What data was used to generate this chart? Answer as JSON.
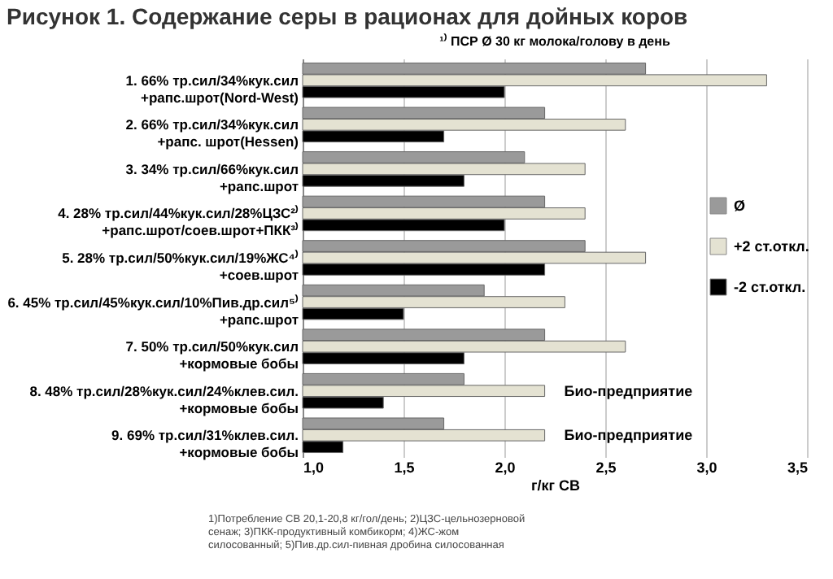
{
  "chart_data": {
    "type": "bar",
    "orientation": "horizontal",
    "title": "Рисунок 1. Содержание серы в рационах для дойных коров",
    "subtitle": "¹⁾ ПСР Ø 30 кг молока/голову в день",
    "xlabel": "г/кг СВ",
    "categories": [
      "1. 66% тр.сил/34%кук.сил\n+рапс.шрот(Nord-West)",
      "2. 66% тр.сил/34%кук.сил\n+рапс. шрот(Hessen)",
      "3. 34% тр.сил/66%кук.сил\n+рапс.шрот",
      "4. 28% тр.сил/44%кук.сил/28%ЦЗС²⁾\n+рапс.шрот/соев.шрот+ПКК³⁾",
      "5. 28% тр.сил/50%кук.сил/19%ЖС⁴⁾\n+соев.шрот",
      "6. 45% тр.сил/45%кук.сил/10%Пив.др.сил⁵⁾\n+рапс.шрот",
      "7. 50% тр.сил/50%кук.сил\n+кормовые бобы",
      "8. 48% тр.сил/28%кук.сил/24%клев.сил.\n+кормовые бобы",
      "9. 69% тр.сил/31%клев.сил.\n+кормовые бобы"
    ],
    "series": [
      {
        "name": "Ø",
        "color": "#9a9a9a",
        "values": [
          2.7,
          2.2,
          2.1,
          2.2,
          2.4,
          1.9,
          2.2,
          1.8,
          1.7
        ]
      },
      {
        "name": "+2 ст.откл.",
        "color": "#e4e2d2",
        "values": [
          3.3,
          2.6,
          2.4,
          2.4,
          2.7,
          2.3,
          2.6,
          2.2,
          2.2
        ]
      },
      {
        "name": "-2 ст.откл.",
        "color": "#000000",
        "values": [
          2.0,
          1.7,
          1.8,
          2.0,
          2.2,
          1.5,
          1.8,
          1.4,
          1.2
        ]
      }
    ],
    "xlim": [
      1.0,
      3.5
    ],
    "xticks": [
      {
        "value": 1.0,
        "label": "1,0"
      },
      {
        "value": 1.5,
        "label": "1,5"
      },
      {
        "value": 2.0,
        "label": "2,0"
      },
      {
        "value": 2.5,
        "label": "2,5"
      },
      {
        "value": 3.0,
        "label": "3,0"
      },
      {
        "value": 3.5,
        "label": "3,5"
      }
    ],
    "grid": "x",
    "legend": "right",
    "annotations": [
      {
        "text": "Био-предприятие",
        "x": 2.2,
        "y": "8. 48% тр.сил/28%кук.сил/24%клев.сил.\n+кормовые бобы"
      },
      {
        "text": "Био-предприятие",
        "x": 2.2,
        "y": "9. 69% тр.сил/31%клев.сил.\n+кормовые бобы"
      },
      "1)Потребление СВ 20,1-20,8 кг/гол/день; 2)ЦЗС-цельнозерновой сенаж; 3)ПКК-продуктивный комбикорм; 4)ЖС-жом силосованный; 5)Пив.др.сил-пивная дробина силосованная"
    ]
  }
}
